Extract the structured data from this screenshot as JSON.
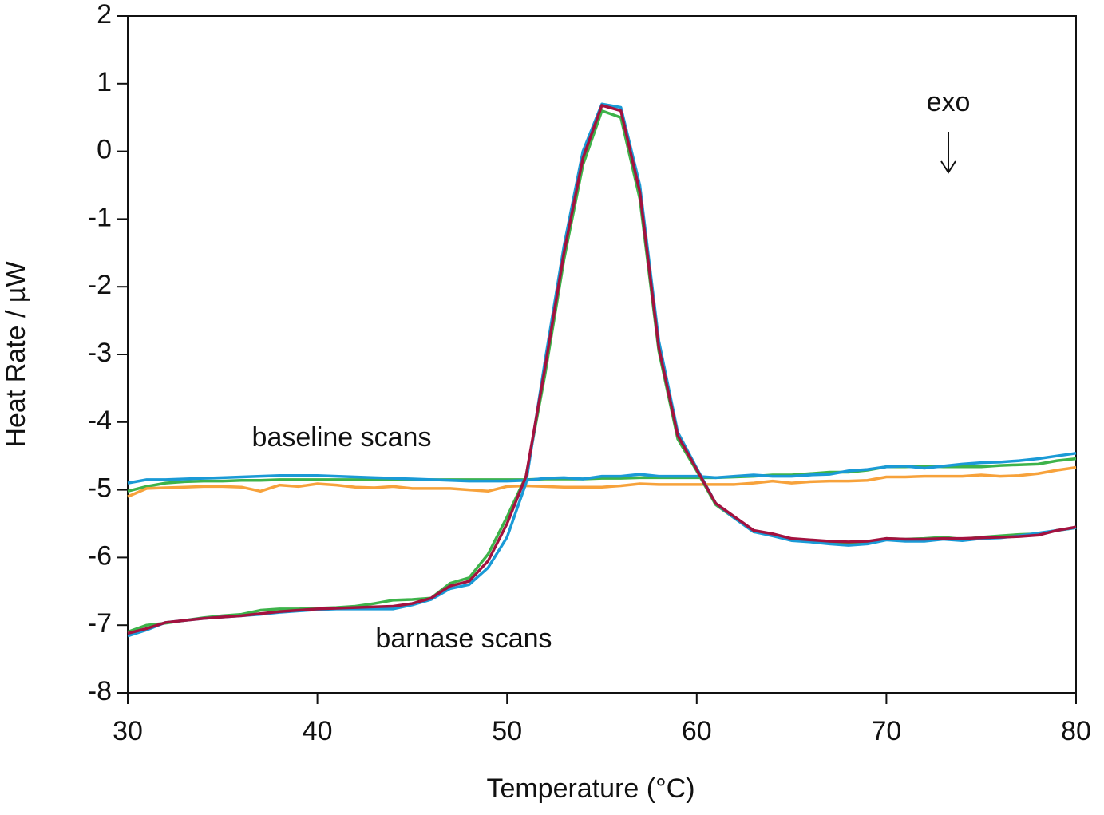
{
  "chart_data": {
    "type": "line",
    "xlabel": "Temperature (°C)",
    "ylabel": "Heat Rate / µW",
    "annotations": [
      "baseline scans",
      "barnase scans",
      "exo"
    ],
    "x": [
      30,
      31,
      32,
      33,
      34,
      35,
      36,
      37,
      38,
      39,
      40,
      41,
      42,
      43,
      44,
      45,
      46,
      47,
      48,
      49,
      50,
      51,
      52,
      53,
      54,
      55,
      56,
      57,
      58,
      59,
      60,
      61,
      62,
      63,
      64,
      65,
      66,
      67,
      68,
      69,
      70,
      71,
      72,
      73,
      74,
      75,
      76,
      77,
      78,
      79,
      80
    ],
    "xlim": [
      30,
      80
    ],
    "xticks": [
      30,
      40,
      50,
      60,
      70,
      80
    ],
    "ylim": [
      -8,
      2
    ],
    "yticks": [
      -8,
      -7,
      -6,
      -5,
      -4,
      -3,
      -2,
      -1,
      0,
      1,
      2
    ],
    "series": [
      {
        "color": "#3db34a",
        "values": [
          -5.02,
          -4.95,
          -4.9,
          -4.88,
          -4.87,
          -4.87,
          -4.86,
          -4.86,
          -4.85,
          -4.85,
          -4.85,
          -4.85,
          -4.85,
          -4.85,
          -4.85,
          -4.85,
          -4.85,
          -4.85,
          -4.85,
          -4.85,
          -4.85,
          -4.85,
          -4.84,
          -4.84,
          -4.84,
          -4.83,
          -4.83,
          -4.82,
          -4.82,
          -4.82,
          -4.82,
          -4.82,
          -4.81,
          -4.8,
          -4.78,
          -4.78,
          -4.76,
          -4.74,
          -4.74,
          -4.71,
          -4.66,
          -4.66,
          -4.65,
          -4.66,
          -4.66,
          -4.66,
          -4.64,
          -4.63,
          -4.62,
          -4.57,
          -4.54
        ]
      },
      {
        "color": "#1a9ad6",
        "values": [
          -4.9,
          -4.85,
          -4.85,
          -4.84,
          -4.83,
          -4.82,
          -4.81,
          -4.8,
          -4.79,
          -4.79,
          -4.79,
          -4.8,
          -4.81,
          -4.82,
          -4.83,
          -4.84,
          -4.85,
          -4.86,
          -4.87,
          -4.87,
          -4.87,
          -4.86,
          -4.83,
          -4.82,
          -4.84,
          -4.8,
          -4.8,
          -4.77,
          -4.8,
          -4.8,
          -4.8,
          -4.82,
          -4.8,
          -4.78,
          -4.8,
          -4.8,
          -4.78,
          -4.77,
          -4.72,
          -4.7,
          -4.66,
          -4.65,
          -4.68,
          -4.65,
          -4.62,
          -4.6,
          -4.59,
          -4.57,
          -4.54,
          -4.5,
          -4.46
        ]
      },
      {
        "color": "#f7a23b",
        "values": [
          -5.1,
          -4.98,
          -4.97,
          -4.96,
          -4.95,
          -4.95,
          -4.96,
          -5.02,
          -4.93,
          -4.95,
          -4.91,
          -4.93,
          -4.96,
          -4.97,
          -4.95,
          -4.98,
          -4.98,
          -4.98,
          -5.0,
          -5.02,
          -4.95,
          -4.94,
          -4.95,
          -4.96,
          -4.96,
          -4.96,
          -4.94,
          -4.91,
          -4.92,
          -4.92,
          -4.92,
          -4.92,
          -4.92,
          -4.9,
          -4.87,
          -4.9,
          -4.88,
          -4.87,
          -4.87,
          -4.86,
          -4.81,
          -4.81,
          -4.8,
          -4.8,
          -4.8,
          -4.78,
          -4.8,
          -4.79,
          -4.76,
          -4.71,
          -4.67
        ]
      },
      {
        "color": "#3db34a",
        "values": [
          -7.1,
          -7.0,
          -6.97,
          -6.93,
          -6.89,
          -6.86,
          -6.84,
          -6.78,
          -6.76,
          -6.76,
          -6.75,
          -6.74,
          -6.72,
          -6.68,
          -6.63,
          -6.62,
          -6.6,
          -6.38,
          -6.3,
          -5.95,
          -5.4,
          -4.8,
          -3.3,
          -1.6,
          -0.2,
          0.6,
          0.5,
          -0.7,
          -2.95,
          -4.25,
          -4.72,
          -5.22,
          -5.42,
          -5.62,
          -5.67,
          -5.74,
          -5.76,
          -5.77,
          -5.78,
          -5.77,
          -5.72,
          -5.73,
          -5.72,
          -5.7,
          -5.73,
          -5.7,
          -5.68,
          -5.66,
          -5.65,
          -5.6,
          -5.56
        ]
      },
      {
        "color": "#1a9ad6",
        "values": [
          -7.16,
          -7.07,
          -6.96,
          -6.93,
          -6.9,
          -6.88,
          -6.86,
          -6.84,
          -6.81,
          -6.79,
          -6.77,
          -6.76,
          -6.76,
          -6.76,
          -6.76,
          -6.7,
          -6.62,
          -6.46,
          -6.4,
          -6.15,
          -5.7,
          -4.9,
          -3.1,
          -1.4,
          0.0,
          0.7,
          0.65,
          -0.5,
          -2.8,
          -4.15,
          -4.68,
          -5.2,
          -5.42,
          -5.62,
          -5.68,
          -5.75,
          -5.77,
          -5.8,
          -5.82,
          -5.8,
          -5.74,
          -5.76,
          -5.76,
          -5.73,
          -5.75,
          -5.72,
          -5.71,
          -5.68,
          -5.64,
          -5.6,
          -5.56
        ]
      },
      {
        "color": "#a3123f",
        "values": [
          -7.12,
          -7.05,
          -6.96,
          -6.93,
          -6.9,
          -6.88,
          -6.86,
          -6.83,
          -6.8,
          -6.78,
          -6.76,
          -6.75,
          -6.74,
          -6.73,
          -6.72,
          -6.68,
          -6.6,
          -6.42,
          -6.35,
          -6.05,
          -5.5,
          -4.8,
          -3.2,
          -1.5,
          -0.1,
          0.68,
          0.6,
          -0.6,
          -2.9,
          -4.2,
          -4.7,
          -5.2,
          -5.4,
          -5.6,
          -5.65,
          -5.72,
          -5.74,
          -5.76,
          -5.77,
          -5.76,
          -5.72,
          -5.73,
          -5.73,
          -5.72,
          -5.72,
          -5.71,
          -5.7,
          -5.69,
          -5.67,
          -5.6,
          -5.55
        ]
      }
    ]
  }
}
